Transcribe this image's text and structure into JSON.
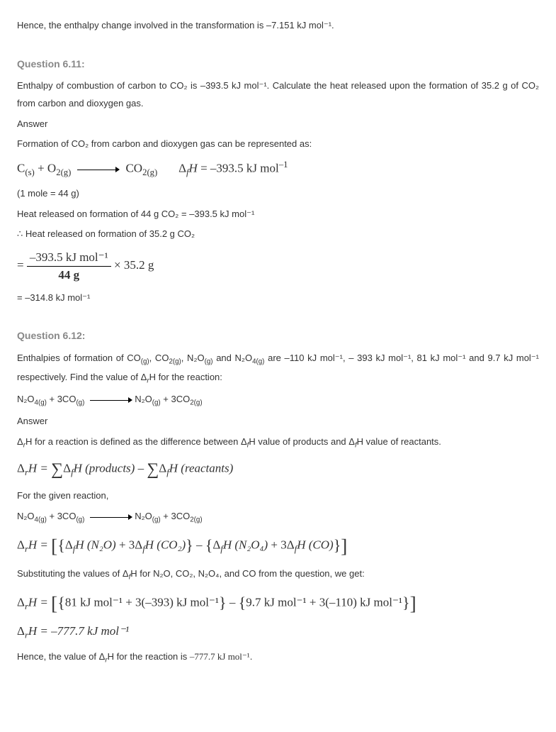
{
  "intro_line": "Hence, the enthalpy change involved in the transformation is –7.151 kJ mol⁻¹.",
  "q611": {
    "heading": "Question 6.11:",
    "prompt": "Enthalpy of combustion of carbon to CO₂ is –393.5 kJ mol⁻¹. Calculate the heat released upon the formation of 35.2 g of CO₂ from carbon and dioxygen gas.",
    "answer_label": "Answer",
    "line1": "Formation of CO₂ from carbon and dioxygen gas can be represented as:",
    "eq_lhs_c": "C",
    "eq_sub_c": "(s)",
    "eq_plus": " + ",
    "eq_o2": "O",
    "eq_sub_o2": "2(g)",
    "eq_co2": "CO",
    "eq_sub_co2": "2(g)",
    "delta_f": "Δ",
    "delta_f_sub": "f",
    "H": "H",
    "eq_val": " = –393.5 kJ mol",
    "eq_sup": "–1",
    "molemass": "(1 mole = 44 g)",
    "line2": "Heat released on formation of 44 g CO₂ = –393.5 kJ mol⁻¹",
    "line3": "∴ Heat released on formation of 35.2 g CO₂",
    "frac_num": "–393.5 kJ mol⁻¹",
    "frac_den": "44 g",
    "times": " × 35.2 g",
    "result": "= –314.8 kJ mol⁻¹"
  },
  "q612": {
    "heading": "Question 6.12:",
    "prompt_a": "Enthalpies of formation of CO",
    "prompt_a_sub1": "(g)",
    "prompt_b": ", CO",
    "prompt_b_sub": "2(g)",
    "prompt_c": ", N₂O",
    "prompt_c_sub": "(g)",
    "prompt_d": " and N₂O",
    "prompt_d_sub": "4(g)",
    "prompt_e": " are –110 kJ mol⁻¹, – 393 kJ mol⁻¹, 81 kJ mol⁻¹ and 9.7 kJ mol⁻¹ respectively. Find the value of Δ",
    "prompt_r": "r",
    "prompt_f": "H for the reaction:",
    "rxn_n2o4": "N₂O",
    "rxn_n2o4_sub": "4(g)",
    "rxn_plus": " + 3CO",
    "rxn_co_sub": "(g)",
    "rxn_n2o": "N₂O",
    "rxn_n2o_sub": "(g)",
    "rxn_plus2": " + 3CO",
    "rxn_co2_sub": "2(g)",
    "answer_label": "Answer",
    "ans1a": "Δ",
    "ans1r": "r",
    "ans1b": "H for a reaction is defined as the difference between Δ",
    "ans1f": "f",
    "ans1c": "H value of products and Δ",
    "ans1d": "H value of reactants.",
    "hess_lhs": "Δ",
    "hess_eq": "H = ",
    "hess_prod": "H (products)",
    "hess_minus": " – ",
    "hess_react": "H (reactants)",
    "for_rxn": "For the given reaction,",
    "expand_lhs": "Δ",
    "expand_eq": "H = ",
    "expand_t1": "Δ",
    "expand_n2o": "H (N₂O)",
    "expand_plus1": " + 3Δ",
    "expand_co2": "H (CO₂)",
    "expand_minus": " – ",
    "expand_n2o4": "H (N₂O₄)",
    "expand_plus2": " + 3Δ",
    "expand_co": "H (CO)",
    "subst_line": "Substituting the values of Δ",
    "subst_line2": "H for N₂O, CO₂, N₂O₄, and CO from the question, we get:",
    "numeric_t1": "81 kJ mol⁻¹ + 3(–393) kJ mol⁻¹",
    "numeric_t2": "9.7 kJ mol⁻¹ + 3(–110) kJ mol⁻¹",
    "result_eq": "H = –777.7 kJ mol⁻¹",
    "final_a": "Hence, the value of Δ",
    "final_b": "H for the reaction is ",
    "final_val": "–777.7 kJ mol⁻¹",
    "final_c": "."
  }
}
